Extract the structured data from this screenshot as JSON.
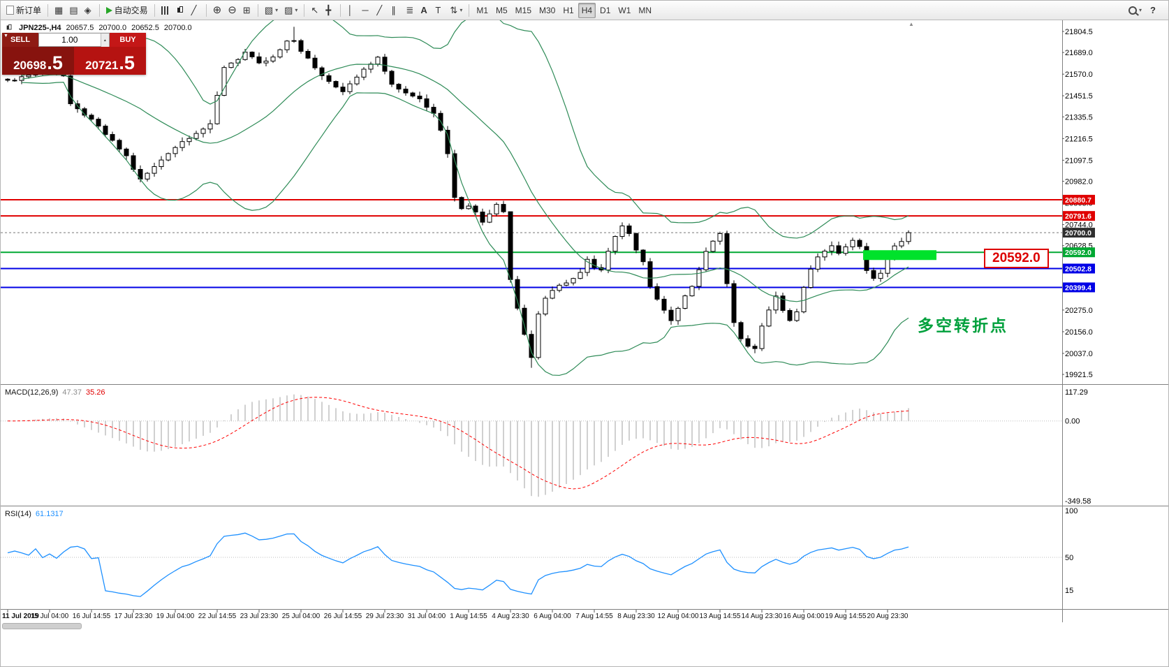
{
  "toolbar": {
    "groups": [
      {
        "items": [
          {
            "name": "new-order-button",
            "icon": "doc",
            "label": "新订单"
          }
        ]
      },
      {
        "items": [
          {
            "name": "market-watch-button",
            "icon": "grid"
          },
          {
            "name": "data-window-button",
            "icon": "rows"
          },
          {
            "name": "navigator-button",
            "icon": "compass"
          }
        ]
      },
      {
        "items": [
          {
            "name": "autotrading-button",
            "icon": "play",
            "label": "自动交易"
          }
        ]
      },
      {
        "items": [
          {
            "name": "bars-chart-button",
            "icon": "bars"
          },
          {
            "name": "candlestick-chart-button",
            "icon": "candles"
          },
          {
            "name": "line-chart-button",
            "icon": "linechart"
          }
        ]
      },
      {
        "items": [
          {
            "name": "zoom-in-button",
            "icon": "zoomin"
          },
          {
            "name": "zoom-out-button",
            "icon": "zoomout"
          },
          {
            "name": "tile-windows-button",
            "icon": "tile"
          }
        ]
      },
      {
        "items": [
          {
            "name": "new-chart-button",
            "icon": "newchart",
            "caret": true
          },
          {
            "name": "profiles-button",
            "icon": "profiles",
            "caret": true
          }
        ]
      },
      {
        "items": [
          {
            "name": "cursor-button",
            "icon": "cursor"
          },
          {
            "name": "crosshair-button",
            "icon": "crosshair"
          }
        ]
      },
      {
        "items": [
          {
            "name": "vertical-line-button",
            "icon": "vline"
          },
          {
            "name": "horizontal-line-button",
            "icon": "hline"
          },
          {
            "name": "trendline-button",
            "icon": "trendline"
          },
          {
            "name": "equidistant-channel-button",
            "icon": "channel"
          },
          {
            "name": "fibonacci-button",
            "icon": "fibo"
          },
          {
            "name": "text-button",
            "icon": "textA"
          },
          {
            "name": "text-label-button",
            "icon": "textT"
          },
          {
            "name": "arrows-button",
            "icon": "arrows",
            "caret": true
          }
        ]
      },
      {
        "items": [
          {
            "name": "timeframe-m1-button",
            "label": "M1"
          },
          {
            "name": "timeframe-m5-button",
            "label": "M5"
          },
          {
            "name": "timeframe-m15-button",
            "label": "M15"
          },
          {
            "name": "timeframe-m30-button",
            "label": "M30"
          },
          {
            "name": "timeframe-h1-button",
            "label": "H1"
          },
          {
            "name": "timeframe-h4-button",
            "label": "H4",
            "active": true
          },
          {
            "name": "timeframe-d1-button",
            "label": "D1"
          },
          {
            "name": "timeframe-w1-button",
            "label": "W1"
          },
          {
            "name": "timeframe-mn-button",
            "label": "MN"
          }
        ]
      }
    ],
    "right_items": [
      {
        "name": "search-button",
        "icon": "mag",
        "caret": true
      },
      {
        "name": "help-button",
        "icon": "help"
      }
    ]
  },
  "symbol_info": {
    "title": "JPN225-,H4",
    "open": "20657.5",
    "high": "20700.0",
    "low": "20652.5",
    "close": "20700.0"
  },
  "trade_panel": {
    "sell_label": "SELL",
    "buy_label": "BUY",
    "volume": "1.00",
    "sell_price_prefix": "20698",
    "sell_price_suffix": ".5",
    "buy_price_prefix": "20721",
    "buy_price_suffix": ".5"
  },
  "annotations": {
    "price_callout": "20592.0",
    "turning_point": "多空转折点"
  },
  "indicators": {
    "macd": {
      "name": "MACD(12,26,9)",
      "main_value": "47.37",
      "signal_value": "35.26",
      "axis_top": "117.29",
      "axis_zero": "0.00",
      "axis_bottom": "-349.58"
    },
    "rsi": {
      "name": "RSI(14)",
      "value": "61.1317",
      "axis_labels": [
        "100",
        "50",
        "15"
      ]
    }
  },
  "chart_data": {
    "type": "candlestick",
    "symbol": "JPN225-,H4",
    "timeframe": "H4",
    "price_axis": {
      "ticks": [
        21804.5,
        21689.0,
        21570.0,
        21451.5,
        21335.5,
        21216.5,
        21097.5,
        20982.0,
        20863.0,
        20744.0,
        20628.5,
        20275.0,
        20156.0,
        20037.0,
        19921.5
      ],
      "top_price": 21866,
      "bottom_price": 19872
    },
    "time_axis": [
      "11 Jul 2019",
      "15 Jul 04:00",
      "16 Jul 14:55",
      "17 Jul 23:30",
      "19 Jul 04:00",
      "22 Jul 14:55",
      "23 Jul 23:30",
      "25 Jul 04:00",
      "26 Jul 14:55",
      "29 Jul 23:30",
      "31 Jul 04:00",
      "1 Aug 14:55",
      "4 Aug 23:30",
      "6 Aug 04:00",
      "7 Aug 14:55",
      "8 Aug 23:30",
      "12 Aug 04:00",
      "13 Aug 14:55",
      "14 Aug 23:30",
      "16 Aug 04:00",
      "19 Aug 14:55",
      "20 Aug 23:30"
    ],
    "candles_per_label": 6,
    "candle_count": 130,
    "close_anchors": [
      [
        0,
        21530
      ],
      [
        2,
        21555
      ],
      [
        4,
        21580
      ],
      [
        6,
        21600
      ],
      [
        8,
        21560
      ],
      [
        9,
        21400
      ],
      [
        11,
        21350
      ],
      [
        13,
        21280
      ],
      [
        15,
        21200
      ],
      [
        17,
        21120
      ],
      [
        18,
        21050
      ],
      [
        19,
        20990
      ],
      [
        21,
        21060
      ],
      [
        23,
        21140
      ],
      [
        25,
        21200
      ],
      [
        27,
        21250
      ],
      [
        29,
        21290
      ],
      [
        30,
        21450
      ],
      [
        31,
        21610
      ],
      [
        33,
        21655
      ],
      [
        34,
        21690
      ],
      [
        36,
        21625
      ],
      [
        38,
        21660
      ],
      [
        40,
        21745
      ],
      [
        41,
        21755
      ],
      [
        42,
        21700
      ],
      [
        43,
        21655
      ],
      [
        44,
        21600
      ],
      [
        46,
        21530
      ],
      [
        48,
        21480
      ],
      [
        50,
        21560
      ],
      [
        52,
        21625
      ],
      [
        53,
        21665
      ],
      [
        54,
        21580
      ],
      [
        55,
        21515
      ],
      [
        57,
        21470
      ],
      [
        59,
        21440
      ],
      [
        61,
        21350
      ],
      [
        62,
        21270
      ],
      [
        63,
        21140
      ],
      [
        64,
        20900
      ],
      [
        65,
        20830
      ],
      [
        66,
        20850
      ],
      [
        67,
        20815
      ],
      [
        68,
        20760
      ],
      [
        69,
        20805
      ],
      [
        70,
        20855
      ],
      [
        71,
        20820
      ],
      [
        72,
        20450
      ],
      [
        73,
        20290
      ],
      [
        74,
        20140
      ],
      [
        75,
        20020
      ],
      [
        76,
        20250
      ],
      [
        77,
        20345
      ],
      [
        78,
        20390
      ],
      [
        80,
        20425
      ],
      [
        82,
        20485
      ],
      [
        83,
        20560
      ],
      [
        84,
        20510
      ],
      [
        85,
        20495
      ],
      [
        86,
        20600
      ],
      [
        87,
        20680
      ],
      [
        88,
        20730
      ],
      [
        89,
        20690
      ],
      [
        90,
        20610
      ],
      [
        91,
        20540
      ],
      [
        92,
        20400
      ],
      [
        93,
        20330
      ],
      [
        94,
        20270
      ],
      [
        95,
        20210
      ],
      [
        96,
        20290
      ],
      [
        97,
        20360
      ],
      [
        98,
        20405
      ],
      [
        99,
        20500
      ],
      [
        100,
        20590
      ],
      [
        101,
        20660
      ],
      [
        102,
        20700
      ],
      [
        103,
        20420
      ],
      [
        104,
        20200
      ],
      [
        105,
        20120
      ],
      [
        106,
        20075
      ],
      [
        107,
        20060
      ],
      [
        108,
        20180
      ],
      [
        109,
        20280
      ],
      [
        110,
        20350
      ],
      [
        111,
        20280
      ],
      [
        112,
        20225
      ],
      [
        113,
        20265
      ],
      [
        114,
        20400
      ],
      [
        115,
        20500
      ],
      [
        116,
        20560
      ],
      [
        117,
        20600
      ],
      [
        118,
        20620
      ],
      [
        119,
        20590
      ],
      [
        120,
        20618
      ],
      [
        121,
        20650
      ],
      [
        122,
        20630
      ],
      [
        123,
        20500
      ],
      [
        124,
        20445
      ],
      [
        125,
        20480
      ],
      [
        126,
        20560
      ],
      [
        127,
        20620
      ],
      [
        128,
        20655
      ],
      [
        129,
        20700
      ]
    ],
    "wick_overrides": {
      "41": {
        "high": 21830
      },
      "72": {
        "high": 20560
      },
      "75": {
        "low": 19958
      },
      "107": {
        "low": 20038
      }
    },
    "current_price": 20700.0,
    "current_price_label": "20700.0",
    "horizontal_lines": [
      {
        "price": 20880.7,
        "label": "20880.7",
        "color": "#e00000"
      },
      {
        "price": 20791.6,
        "label": "20791.6",
        "color": "#e00000"
      },
      {
        "price": 20592.0,
        "label": "20592.0",
        "color": "#00a832"
      },
      {
        "price": 20502.8,
        "label": "20502.8",
        "color": "#0000e6"
      },
      {
        "price": 20399.4,
        "label": "20399.4",
        "color": "#0000e6"
      }
    ],
    "highlight_box": {
      "from_candle": 122.5,
      "to_candle": 133,
      "price": 20592.0,
      "color": "#00e22b"
    },
    "bollinger": {
      "period": 20,
      "deviation": 2,
      "color": "#2e8b57"
    },
    "colors": {
      "candle_up_fill": "#ffffff",
      "candle_down_fill": "#000000",
      "candle_stroke": "#000000",
      "macd_histogram": "#c4c4c4",
      "macd_signal": "#ff0000",
      "rsi_line": "#1e90ff",
      "current_price_badge": "#2f2f2f"
    }
  }
}
